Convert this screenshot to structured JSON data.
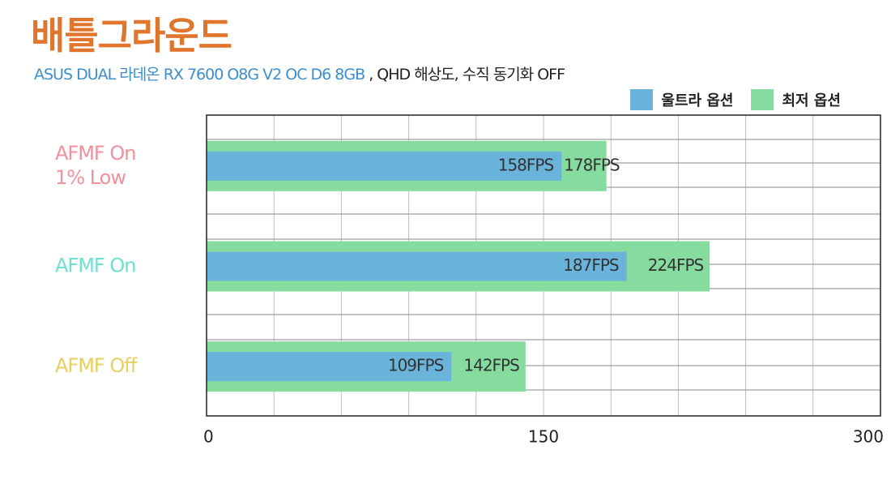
{
  "title": "배틀그라운드",
  "subtitle": {
    "product": "ASUS DUAL 라데온 RX 7600 O8G V2 OC D6 8GB",
    "settings": ", QHD 해상도, 수직 동기화 OFF"
  },
  "colors": {
    "ultra": "#6ab4db",
    "low": "#86dc9e",
    "title": "#e0752e",
    "subtitle": "#3b8fd0"
  },
  "chart_data": {
    "type": "bar",
    "orientation": "horizontal",
    "categories": [
      "AFMF On\n1% Low",
      "AFMF On",
      "AFMF Off"
    ],
    "category_colors": [
      "#f2919b",
      "#6ee0cf",
      "#e9cf5c"
    ],
    "series": [
      {
        "name": "울트라 옵션",
        "values": [
          158,
          187,
          109
        ],
        "labels": [
          "158FPS",
          "187FPS",
          "109FPS"
        ]
      },
      {
        "name": "최저 옵션",
        "values": [
          178,
          224,
          142
        ],
        "labels": [
          "178FPS",
          "224FPS",
          "142FPS"
        ]
      }
    ],
    "xlim": [
      0,
      300
    ],
    "xticks": [
      "0",
      "150",
      "300"
    ],
    "grid": true,
    "legend_position": "top-right"
  }
}
